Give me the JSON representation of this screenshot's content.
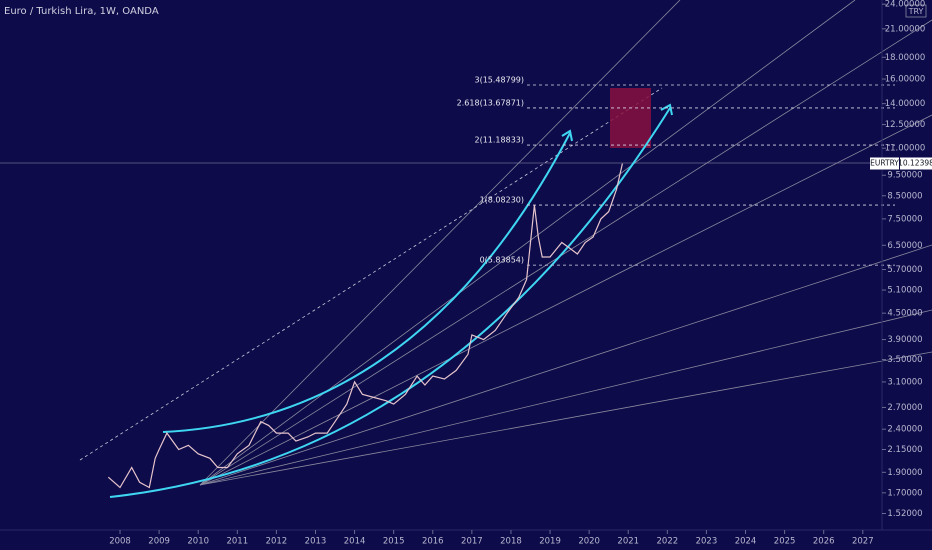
{
  "chart_data": {
    "type": "line",
    "title": "Euro / Turkish Lira, 1W, OANDA",
    "currency": "TRY",
    "symbol": "EURTRY",
    "last_price": 10.12398,
    "log_scale": true,
    "color": "#e6c4cc",
    "xlim": [
      2004.93,
      2027.44
    ],
    "xticks": [
      2008,
      2009,
      2010,
      2011,
      2012,
      2013,
      2014,
      2015,
      2016,
      2017,
      2018,
      2019,
      2020,
      2021,
      2022,
      2023,
      2024,
      2025,
      2026,
      2027
    ],
    "ylim": [
      1.39,
      24.55
    ],
    "yticks": [
      {
        "value": 1.52,
        "label": "1.52000"
      },
      {
        "value": 1.7,
        "label": "1.70000"
      },
      {
        "value": 1.9,
        "label": "1.90000"
      },
      {
        "value": 2.15,
        "label": "2.15000"
      },
      {
        "value": 2.4,
        "label": "2.40000"
      },
      {
        "value": 2.7,
        "label": "2.70000"
      },
      {
        "value": 3.1,
        "label": "3.10000"
      },
      {
        "value": 3.5,
        "label": "3.50000"
      },
      {
        "value": 3.9,
        "label": "3.90000"
      },
      {
        "value": 4.5,
        "label": "4.50000"
      },
      {
        "value": 5.1,
        "label": "5.10000"
      },
      {
        "value": 5.7,
        "label": "5.70000"
      },
      {
        "value": 6.5,
        "label": "6.50000"
      },
      {
        "value": 7.5,
        "label": "7.50000"
      },
      {
        "value": 8.5,
        "label": "8.50000"
      },
      {
        "value": 9.5,
        "label": "9.50000"
      },
      {
        "value": 11,
        "label": "11.00000"
      },
      {
        "value": 12.5,
        "label": "12.50000"
      },
      {
        "value": 14,
        "label": "14.00000"
      },
      {
        "value": 16,
        "label": "16.00000"
      },
      {
        "value": 18,
        "label": "18.00000"
      },
      {
        "value": 21,
        "label": "21.00000"
      },
      {
        "value": 24,
        "label": "24.00000"
      }
    ],
    "fib_levels": [
      {
        "label": "3(15.48799)",
        "value": 15.48799
      },
      {
        "label": "2.618(13.67871)",
        "value": 13.67871
      },
      {
        "label": "2(11.18833)",
        "value": 11.18833
      },
      {
        "label": "1(8.08230)",
        "value": 8.0823
      },
      {
        "label": "0(5.83854)",
        "value": 5.83854
      }
    ],
    "x": [
      2007.7,
      2008.0,
      2008.3,
      2008.5,
      2008.75,
      2008.9,
      2009.0,
      2009.2,
      2009.5,
      2009.75,
      2010.0,
      2010.3,
      2010.5,
      2010.75,
      2011.0,
      2011.3,
      2011.6,
      2011.8,
      2012.0,
      2012.3,
      2012.5,
      2012.8,
      2013.0,
      2013.3,
      2013.5,
      2013.8,
      2014.0,
      2014.2,
      2014.5,
      2014.8,
      2015.0,
      2015.3,
      2015.6,
      2015.8,
      2016.0,
      2016.3,
      2016.6,
      2016.9,
      2017.0,
      2017.3,
      2017.6,
      2017.9,
      2018.2,
      2018.4,
      2018.6,
      2018.7,
      2018.8,
      2019.0,
      2019.3,
      2019.5,
      2019.7,
      2019.9,
      2020.1,
      2020.3,
      2020.5,
      2020.7,
      2020.85
    ],
    "values": [
      1.85,
      1.75,
      1.95,
      1.8,
      1.75,
      2.05,
      2.15,
      2.35,
      2.15,
      2.2,
      2.1,
      2.05,
      1.95,
      1.95,
      2.1,
      2.2,
      2.5,
      2.45,
      2.35,
      2.35,
      2.25,
      2.3,
      2.35,
      2.35,
      2.5,
      2.75,
      3.1,
      2.9,
      2.85,
      2.8,
      2.75,
      2.9,
      3.2,
      3.05,
      3.2,
      3.15,
      3.3,
      3.6,
      4.0,
      3.9,
      4.1,
      4.5,
      4.9,
      5.4,
      8.08,
      6.8,
      6.1,
      6.1,
      6.6,
      6.4,
      6.2,
      6.6,
      6.8,
      7.5,
      7.8,
      8.8,
      10.12
    ]
  }
}
